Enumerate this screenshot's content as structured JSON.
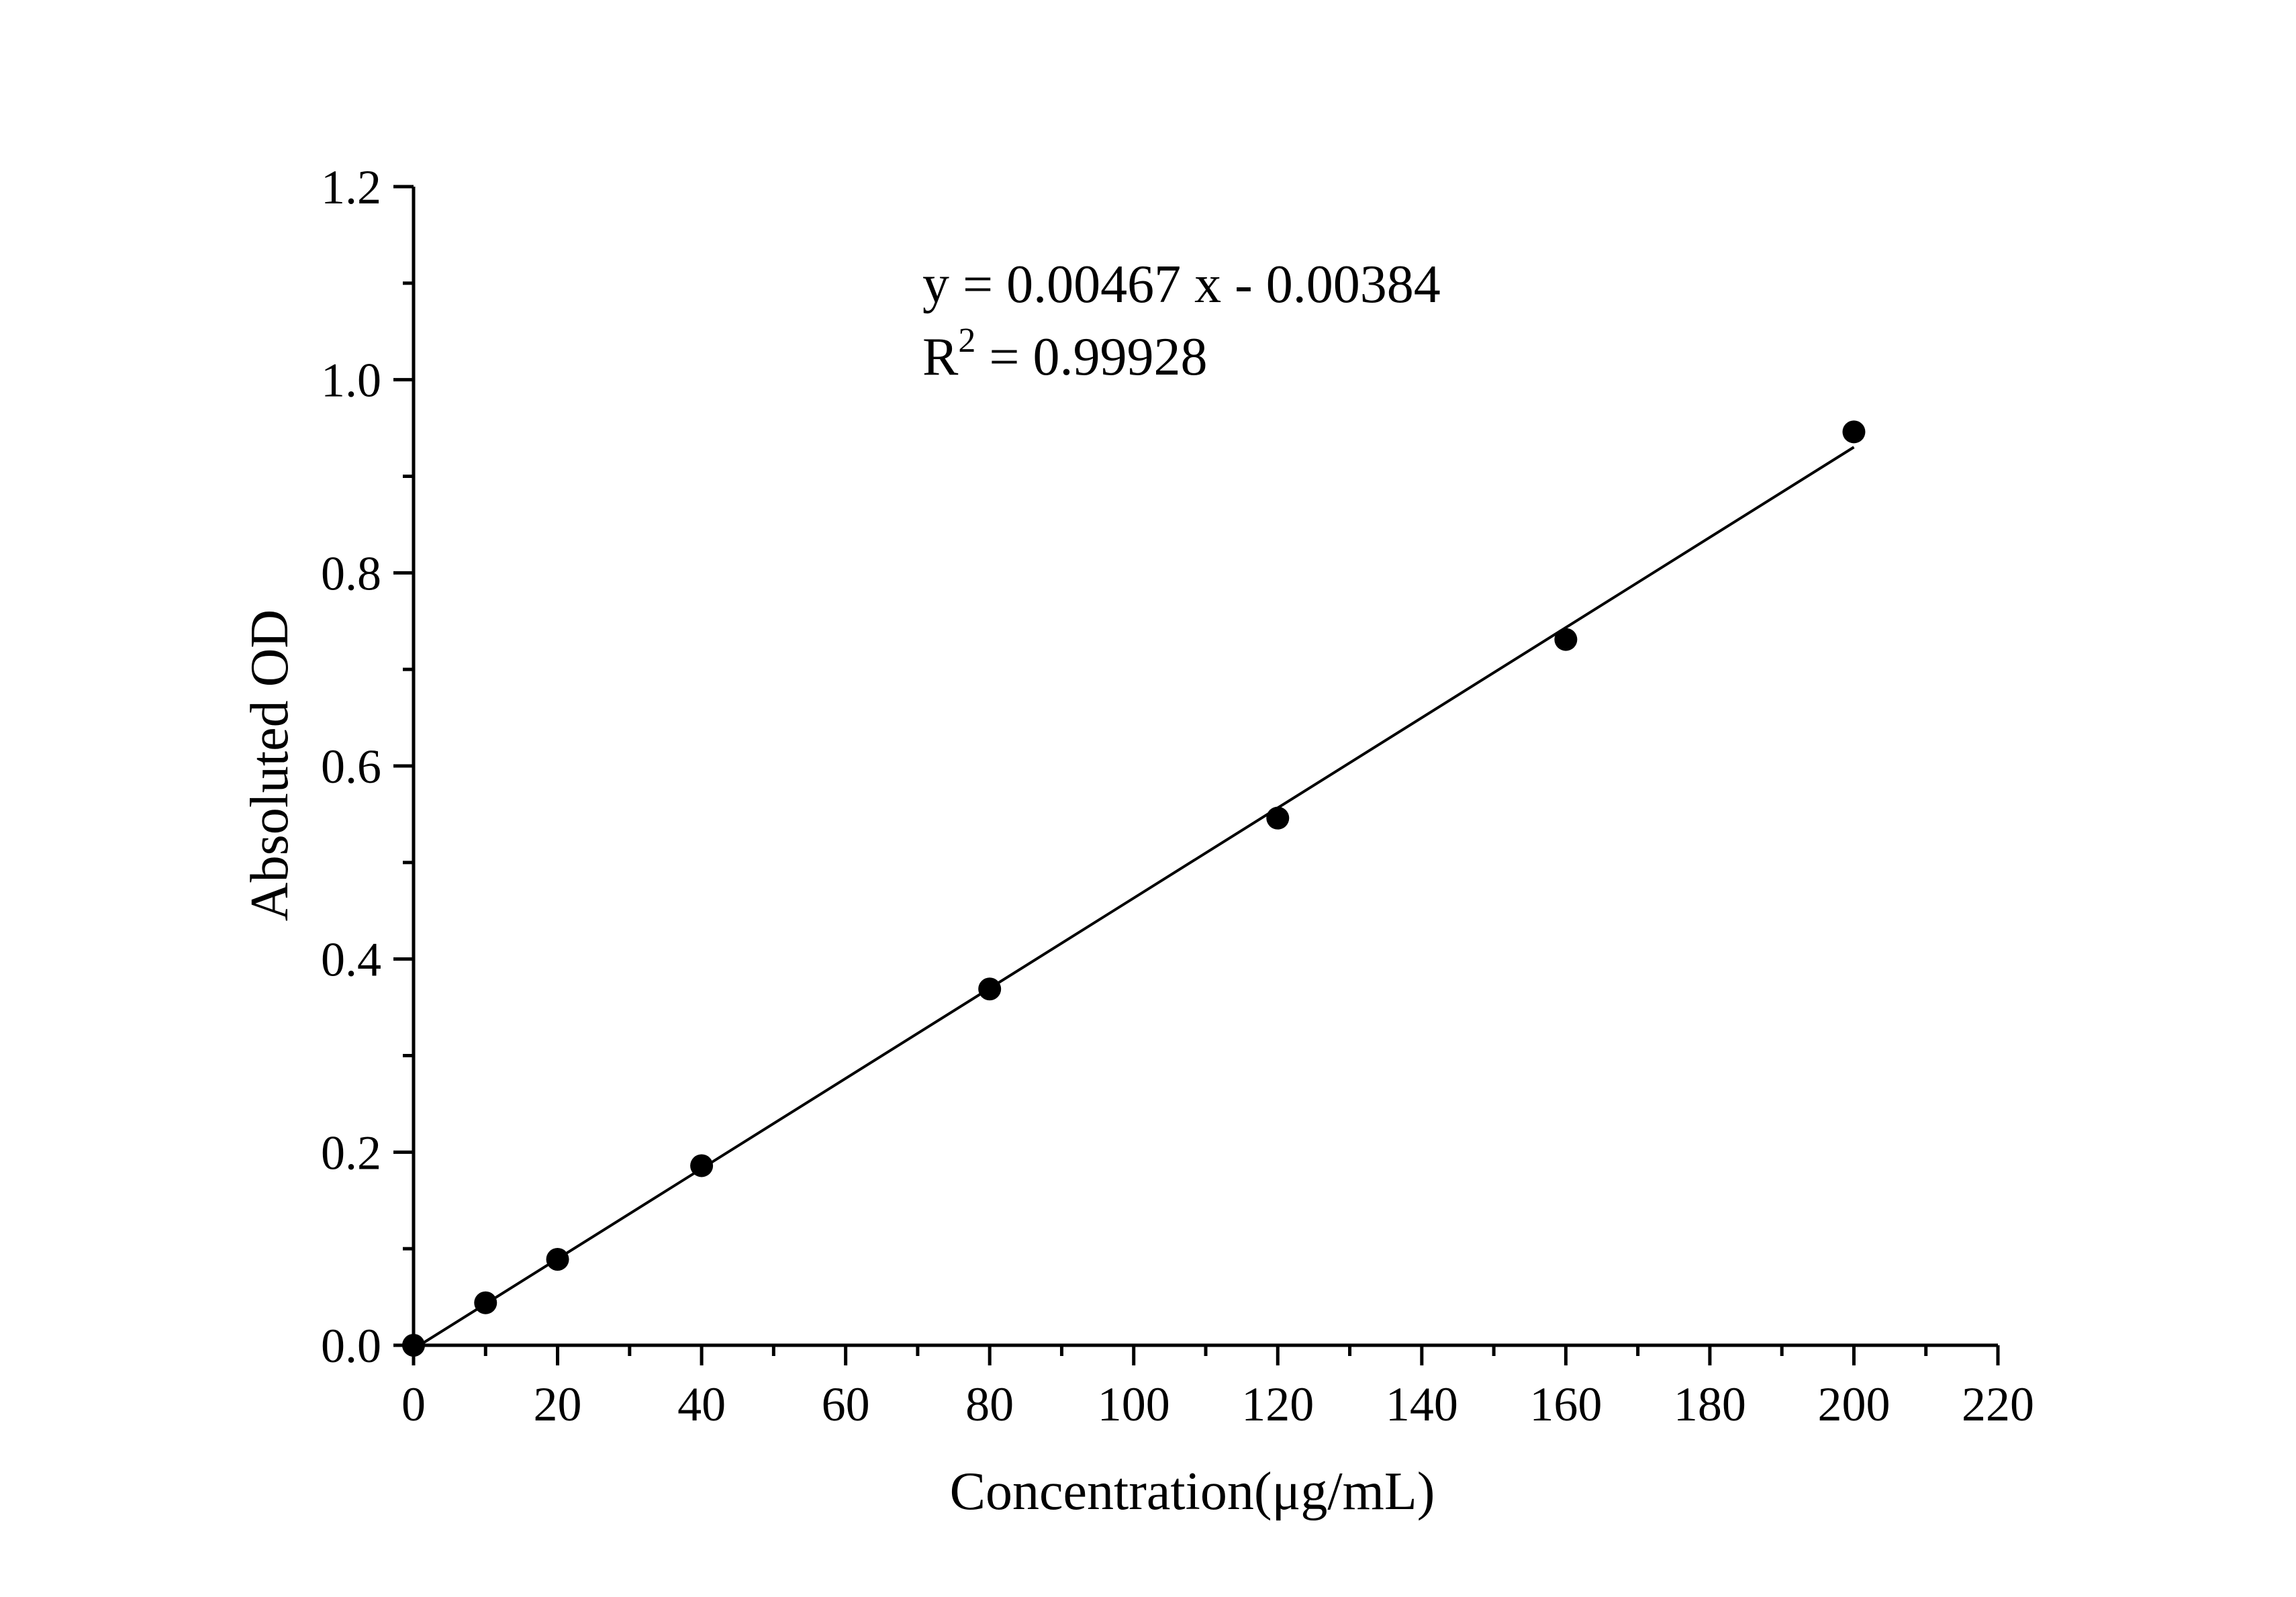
{
  "chart_data": {
    "type": "scatter",
    "xlabel": "Concentration(μg/mL)",
    "ylabel": "Absoluted OD",
    "xlim": [
      0,
      220
    ],
    "ylim": [
      0,
      1.2
    ],
    "x_ticks": [
      "0",
      "20",
      "40",
      "60",
      "80",
      "100",
      "120",
      "140",
      "160",
      "180",
      "200",
      "220"
    ],
    "y_ticks": [
      "0.0",
      "0.2",
      "0.4",
      "0.6",
      "0.8",
      "1.0",
      "1.2"
    ],
    "series": [
      {
        "x": [
          0,
          10,
          20,
          40,
          80,
          120,
          160,
          200
        ],
        "y": [
          0.0,
          0.044,
          0.089,
          0.186,
          0.369,
          0.546,
          0.731,
          0.946
        ],
        "color": "#000000"
      }
    ],
    "fit_line": {
      "slope": 0.00467,
      "intercept": -0.00384,
      "x_range": [
        0,
        200
      ],
      "color": "#000000"
    },
    "annotations": {
      "equation": "y = 0.00467 x - 0.00384",
      "r2_prefix": "R",
      "r2_superscript": "2",
      "r2_suffix": " = 0.99928"
    },
    "grid": false,
    "legend": "none"
  }
}
